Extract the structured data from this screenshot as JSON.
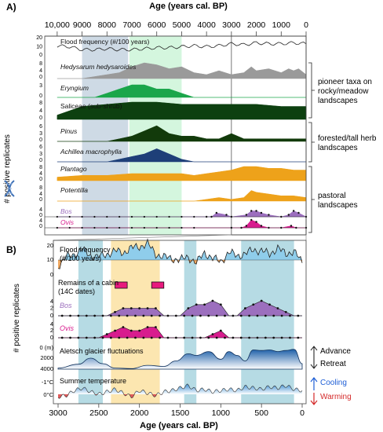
{
  "panelA": {
    "label": "A)",
    "axis_title": "Age (years cal. BP)",
    "ticks": [
      "10,000",
      "9000",
      "8000",
      "7000",
      "6000",
      "5000",
      "4000",
      "3000",
      "2000",
      "1000",
      "0"
    ],
    "ylabel": "# positive replicates",
    "legend_groups": [
      {
        "text": [
          "pioneer taxa on",
          "rocky/meadow",
          "landscapes"
        ]
      },
      {
        "text": [
          "forested/tall herb",
          "landscapes"
        ]
      },
      {
        "text": [
          "pastoral",
          "landscapes"
        ]
      }
    ],
    "colors": {
      "band_blue": "#c5d3e0",
      "band_green": "#ccf5d8"
    }
  },
  "panelB": {
    "label": "B)",
    "axis_title": "Age (years cal. BP)",
    "ticks": [
      "3000",
      "2500",
      "2000",
      "1500",
      "1000",
      "500",
      "0"
    ],
    "ylabel": "# positive replicates",
    "cabin_label": [
      "Remains of a cabin",
      "(14C dates)"
    ],
    "glacier_ticks": [
      "0 (m)",
      "2000",
      "4000"
    ],
    "glacier_legend": [
      "Advance",
      "Retreat"
    ],
    "temp_ticks": [
      "-1°C",
      "0°C"
    ],
    "temp_legend": [
      "Cooling",
      "Warming"
    ],
    "colors": {
      "band_teal": "#a9d5df",
      "band_yellow": "#fbe2a2",
      "cooling": "#1f5fd6",
      "warming": "#d42a2a"
    }
  },
  "chart_data": [
    {
      "type": "area",
      "panel": "A",
      "xlabel": "Age (years cal. BP)",
      "xlim": [
        10500,
        0
      ],
      "highlight_bands": [
        [
          9000,
          7150
        ],
        [
          7100,
          5000
        ]
      ],
      "window_box": [
        3000,
        0
      ],
      "series": [
        {
          "name": "Flood frequency (#/100 years)",
          "color": "#222222",
          "kind": "line",
          "ylim": [
            0,
            20
          ],
          "ticks": [
            "20",
            "10",
            "0"
          ],
          "x": [
            10000,
            9500,
            9000,
            8500,
            8000,
            7500,
            7000,
            6500,
            6000,
            5500,
            5000,
            4500,
            4000,
            3500,
            3000,
            2500,
            2000,
            1500,
            1000,
            500,
            0
          ],
          "values": [
            11,
            10,
            7,
            7,
            8,
            7,
            7,
            8,
            9,
            9,
            10,
            11,
            10,
            11,
            13,
            12,
            14,
            13,
            13,
            14,
            13
          ]
        },
        {
          "name": "Hedysarum hedysaroides",
          "color": "#9a9a9a",
          "ylim": [
            0,
            8
          ],
          "ticks": [
            "8",
            "4",
            "0"
          ],
          "x": [
            10000,
            9000,
            8500,
            8000,
            7500,
            7000,
            6500,
            6000,
            5500,
            5000,
            4500,
            4000,
            3500,
            3000,
            2500,
            2200,
            2000,
            1500,
            1000,
            700,
            500,
            300,
            0
          ],
          "values": [
            0,
            0,
            1,
            2,
            3,
            6,
            8,
            7,
            5,
            6,
            3,
            2,
            4,
            2,
            3,
            6,
            4,
            5,
            3,
            5,
            4,
            5,
            2
          ]
        },
        {
          "name": "Eryngium",
          "color": "#1aa64a",
          "ylim": [
            0,
            3
          ],
          "ticks": [
            "3",
            "0"
          ],
          "x": [
            10000,
            9000,
            8500,
            8000,
            7500,
            7000,
            6500,
            6000,
            5500,
            5000,
            4500,
            4000,
            3000,
            2500,
            2000,
            1500,
            1000,
            500,
            0
          ],
          "values": [
            0,
            0,
            0,
            1,
            2,
            3,
            3,
            2,
            2,
            1,
            0,
            0,
            0,
            0,
            0,
            0,
            0,
            0,
            0
          ]
        },
        {
          "name": "Saliceae (sub-shrub)",
          "color": "#0d4010",
          "ylim": [
            0,
            8
          ],
          "ticks": [
            "8",
            "4",
            "0"
          ],
          "x": [
            10000,
            9500,
            9000,
            8000,
            7000,
            6000,
            5000,
            4000,
            3000,
            2000,
            1000,
            0
          ],
          "values": [
            2,
            4,
            6,
            7,
            8,
            8,
            7,
            7,
            7,
            7,
            6,
            6
          ]
        },
        {
          "name": "Pinus",
          "color": "#123a0b",
          "ylim": [
            0,
            6
          ],
          "ticks": [
            "6",
            "3",
            "0"
          ],
          "x": [
            10000,
            8000,
            7500,
            7000,
            6500,
            6000,
            5500,
            5000,
            4500,
            4000,
            3500,
            3000,
            2500,
            2000,
            1500,
            1000,
            500,
            0
          ],
          "values": [
            0,
            0,
            1,
            2,
            4,
            6,
            3,
            2,
            2,
            1,
            1,
            3,
            1,
            1,
            1,
            1,
            1,
            1
          ]
        },
        {
          "name": "Achillea macrophylla",
          "color": "#1e3f78",
          "ylim": [
            0,
            6
          ],
          "ticks": [
            "6",
            "3",
            "0"
          ],
          "x": [
            10000,
            8000,
            7500,
            7000,
            6500,
            6000,
            5500,
            5000,
            4500,
            4000,
            3500,
            3000,
            2000,
            1000,
            0
          ],
          "values": [
            0,
            0,
            1,
            2,
            3,
            5,
            3,
            1,
            0,
            0,
            0,
            0,
            0,
            0,
            0
          ]
        },
        {
          "name": "Plantago",
          "color": "#eea21a",
          "ylim": [
            0,
            8
          ],
          "ticks": [
            "8",
            "4",
            "0"
          ],
          "x": [
            10000,
            9000,
            8000,
            7000,
            6000,
            5000,
            4500,
            4000,
            3500,
            3000,
            2500,
            2000,
            1500,
            1000,
            500,
            0
          ],
          "values": [
            2,
            3,
            3,
            4,
            4,
            4,
            3,
            4,
            5,
            6,
            8,
            8,
            7,
            7,
            6,
            6
          ]
        },
        {
          "name": "Potentilla",
          "color": "#eea21a",
          "ylim": [
            0,
            8
          ],
          "ticks": [
            "8",
            "4",
            "0"
          ],
          "x": [
            10000,
            8000,
            7000,
            6000,
            5000,
            4500,
            4000,
            3500,
            3000,
            2500,
            2200,
            2000,
            1500,
            1000,
            500,
            0
          ],
          "values": [
            0,
            0,
            0,
            0,
            0,
            0,
            1,
            2,
            1,
            2,
            6,
            5,
            4,
            3,
            3,
            2
          ]
        },
        {
          "name": "Bos",
          "color": "#9c6fbe",
          "ylim": [
            0,
            4
          ],
          "ticks": [
            "4",
            "0"
          ],
          "x": [
            10000,
            4000,
            3800,
            3600,
            3200,
            3000,
            2400,
            2200,
            2000,
            1800,
            1500,
            1000,
            700,
            500,
            300,
            0
          ],
          "values": [
            0,
            0,
            0,
            2,
            1,
            0,
            1,
            3,
            3,
            2,
            1,
            0,
            1,
            3,
            2,
            0
          ]
        },
        {
          "name": "Ovis",
          "color": "#d81c8e",
          "ylim": [
            0,
            4
          ],
          "ticks": [
            "4",
            "0"
          ],
          "x": [
            10000,
            3000,
            2600,
            2400,
            2200,
            2000,
            1800,
            1500,
            1000,
            600,
            400,
            0
          ],
          "values": [
            0,
            0,
            0,
            1,
            4,
            3,
            1,
            0,
            0,
            1,
            0,
            0
          ]
        }
      ]
    },
    {
      "type": "area",
      "panel": "B",
      "xlabel": "Age (years cal. BP)",
      "xlim": [
        3000,
        0
      ],
      "highlight_bands": [
        [
          2750,
          2450
        ],
        [
          2350,
          1750
        ],
        [
          1450,
          1300
        ],
        [
          750,
          100
        ]
      ],
      "cabin_dates": [
        [
          2300,
          2150
        ],
        [
          1850,
          1700
        ]
      ],
      "series": [
        {
          "name": "Flood frequency (#/100 years)",
          "kind": "line",
          "color": "#222222",
          "fill": "#8fcdeb",
          "ylim": [
            0,
            20
          ],
          "ticks": [
            "20",
            "10",
            "0"
          ],
          "x": [
            3000,
            2900,
            2800,
            2700,
            2600,
            2500,
            2400,
            2300,
            2200,
            2100,
            2000,
            1900,
            1800,
            1700,
            1600,
            1500,
            1400,
            1300,
            1200,
            1100,
            1000,
            900,
            800,
            700,
            600,
            500,
            400,
            300,
            200,
            100,
            0
          ],
          "values": [
            6,
            12,
            14,
            17,
            13,
            12,
            14,
            16,
            15,
            18,
            19,
            21,
            14,
            12,
            11,
            10,
            12,
            8,
            15,
            11,
            9,
            15,
            13,
            14,
            17,
            16,
            14,
            18,
            14,
            16,
            8
          ]
        },
        {
          "name": "Bos",
          "color": "#9c6fbe",
          "ylim": [
            0,
            4
          ],
          "ticks": [
            "4",
            "2",
            "0"
          ],
          "x": [
            3000,
            2400,
            2300,
            2200,
            2100,
            2000,
            1900,
            1800,
            1700,
            1500,
            1400,
            1300,
            1200,
            1100,
            1000,
            900,
            800,
            700,
            600,
            500,
            400,
            300,
            200,
            100,
            0
          ],
          "values": [
            0,
            0,
            1,
            2,
            2,
            2,
            2,
            2,
            0,
            0,
            2,
            3,
            3,
            4,
            3,
            0,
            0,
            2,
            3,
            4,
            3,
            2,
            1,
            0,
            0
          ]
        },
        {
          "name": "Ovis",
          "color": "#d81c8e",
          "ylim": [
            0,
            4
          ],
          "ticks": [
            "4",
            "2",
            "0"
          ],
          "x": [
            3000,
            2500,
            2400,
            2300,
            2200,
            2100,
            2000,
            1900,
            1800,
            1700,
            1500,
            1200,
            1100,
            1000,
            900,
            800,
            700,
            500,
            300,
            0
          ],
          "values": [
            0,
            0,
            1,
            2,
            3,
            2,
            2,
            3,
            3,
            0,
            0,
            0,
            1,
            2,
            0,
            0,
            0,
            0,
            0,
            0
          ]
        },
        {
          "name": "Aletsch glacier fluctuations",
          "color": "#1d5fa8",
          "ylim": [
            4000,
            0
          ],
          "ticks": [
            "0 (m)",
            "2000",
            "4000"
          ],
          "x": [
            3000,
            2750,
            2600,
            2450,
            2300,
            2100,
            1900,
            1700,
            1550,
            1400,
            1300,
            1150,
            1000,
            900,
            800,
            700,
            600,
            500,
            400,
            300,
            200,
            100,
            0
          ],
          "values": [
            3800,
            3100,
            2000,
            3000,
            3800,
            3900,
            3300,
            3500,
            2500,
            1200,
            1500,
            800,
            2200,
            800,
            1500,
            2500,
            500,
            600,
            500,
            800,
            600,
            400,
            3000
          ]
        },
        {
          "name": "Summer temperature",
          "color": "#3f8fd2",
          "ylim": [
            0.5,
            -1.5
          ],
          "ticks": [
            "-1°C",
            "0°C"
          ],
          "x": [
            3000,
            2900,
            2800,
            2700,
            2600,
            2500,
            2400,
            2300,
            2200,
            2100,
            2000,
            1900,
            1800,
            1700,
            1600,
            1500,
            1400,
            1300,
            1200,
            1100,
            1000,
            900,
            800,
            700,
            600,
            500,
            400,
            300,
            200,
            100,
            0
          ],
          "values": [
            0.2,
            0.1,
            -0.3,
            -0.5,
            -0.2,
            0,
            -0.2,
            -0.4,
            -0.1,
            0.2,
            -0.3,
            -0.1,
            0.1,
            -0.2,
            -0.3,
            -0.5,
            -0.7,
            -0.3,
            -0.4,
            -0.2,
            -0.3,
            -0.4,
            -0.3,
            -0.6,
            -0.5,
            -0.4,
            -0.6,
            -0.5,
            -0.7,
            -0.4,
            -0.3
          ]
        }
      ]
    }
  ]
}
